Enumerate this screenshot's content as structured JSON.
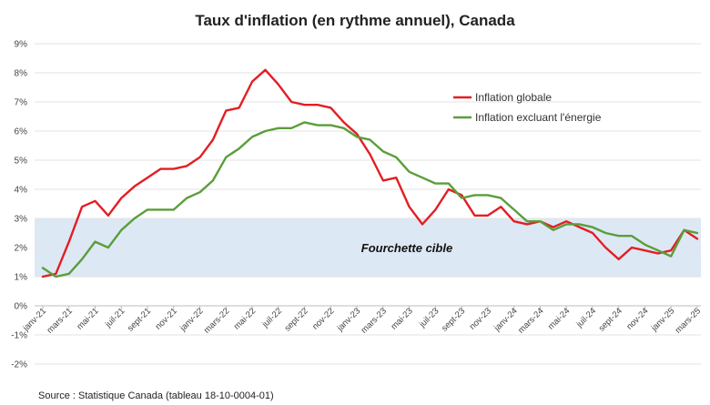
{
  "chart_data": {
    "type": "line",
    "title": "Taux d'inflation (en rythme annuel), Canada",
    "source": "Source : Statistique Canada (tableau 18-10-0004-01)",
    "band": {
      "label": "Fourchette cible",
      "from": 1,
      "to": 3,
      "color": "#dde8f5"
    },
    "ylim": [
      -2,
      9
    ],
    "yticks": [
      -2,
      -1,
      0,
      1,
      2,
      3,
      4,
      5,
      6,
      7,
      8,
      9
    ],
    "ytick_labels": [
      "-2%",
      "-1%",
      "0%",
      "1%",
      "2%",
      "3%",
      "4%",
      "5%",
      "6%",
      "7%",
      "8%",
      "9%"
    ],
    "legend_position": "top-right",
    "grid": true,
    "x_labels": [
      "janv-21",
      "mars-21",
      "mai-21",
      "juil-21",
      "sept-21",
      "nov-21",
      "janv-22",
      "mars-22",
      "mai-22",
      "juil-22",
      "sept-22",
      "nov-22",
      "janv-23",
      "mars-23",
      "mai-23",
      "juil-23",
      "sept-23",
      "nov-23",
      "janv-24",
      "mars-24",
      "mai-24",
      "juil-24",
      "sept-24",
      "nov-24",
      "janv-25",
      "mars-25"
    ],
    "series": [
      {
        "name": "Inflation globale",
        "color": "#e31e24",
        "values": [
          1.0,
          1.1,
          2.2,
          3.4,
          3.6,
          3.1,
          3.7,
          4.1,
          4.4,
          4.7,
          4.7,
          4.8,
          5.1,
          5.7,
          6.7,
          6.8,
          7.7,
          8.1,
          7.6,
          7.0,
          6.9,
          6.9,
          6.8,
          6.3,
          5.9,
          5.2,
          4.3,
          4.4,
          3.4,
          2.8,
          3.3,
          4.0,
          3.8,
          3.1,
          3.1,
          3.4,
          2.9,
          2.8,
          2.9,
          2.7,
          2.9,
          2.7,
          2.5,
          2.0,
          1.6,
          2.0,
          1.9,
          1.8,
          1.9,
          2.6,
          2.3
        ]
      },
      {
        "name": "Inflation excluant l'énergie",
        "color": "#5a9e3a",
        "values": [
          1.3,
          1.0,
          1.1,
          1.6,
          2.2,
          2.0,
          2.6,
          3.0,
          3.3,
          3.3,
          3.3,
          3.7,
          3.9,
          4.3,
          5.1,
          5.4,
          5.8,
          6.0,
          6.1,
          6.1,
          6.3,
          6.2,
          6.2,
          6.1,
          5.8,
          5.7,
          5.3,
          5.1,
          4.6,
          4.4,
          4.2,
          4.2,
          3.7,
          3.8,
          3.8,
          3.7,
          3.3,
          2.9,
          2.9,
          2.6,
          2.8,
          2.8,
          2.7,
          2.5,
          2.4,
          2.4,
          2.1,
          1.9,
          1.7,
          2.6,
          2.5
        ]
      }
    ]
  }
}
